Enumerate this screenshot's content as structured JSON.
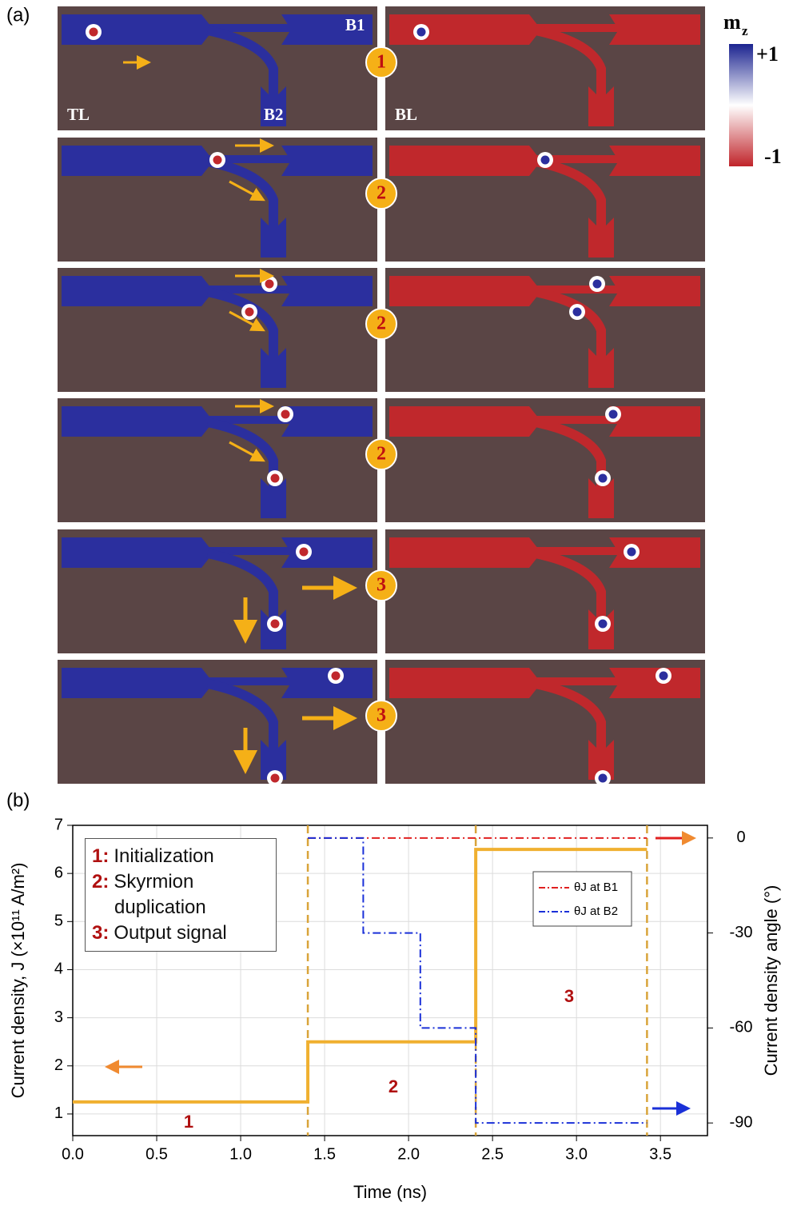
{
  "panel_a": {
    "label": "(a)",
    "terminals": {
      "tl": "TL",
      "b1": "B1",
      "b2": "B2",
      "bl": "BL"
    },
    "steps": [
      "1",
      "2",
      "2",
      "2",
      "3",
      "3"
    ],
    "colorbar": {
      "symbol": "m",
      "subscript": "z",
      "max": "+1",
      "min": "-1"
    }
  },
  "panel_b_label": "(b)",
  "chart_data": {
    "type": "line",
    "x_label": "Time (ns)",
    "y_label": "Current density, J (×10¹¹ A/m²)",
    "y2_label": "Current density angle (°)",
    "xlim": [
      0,
      3.78
    ],
    "xticks": [
      {
        "value": 0,
        "label": "0.0"
      },
      0.5,
      {
        "value": 1,
        "label": "1.0"
      },
      1.5,
      {
        "value": 2,
        "label": "2.0"
      },
      2.5,
      {
        "value": 3,
        "label": "3.0"
      },
      3.5
    ],
    "ylim": [
      0.55,
      7
    ],
    "yticks": [
      1,
      2,
      3,
      4,
      5,
      6,
      7
    ],
    "y2lim": [
      -94,
      4
    ],
    "y2ticks": [
      0,
      -30,
      -60,
      -90
    ],
    "grid": true,
    "legend": "upper right",
    "vlines": {
      "values": [
        1.4,
        2.4,
        3.42
      ],
      "color": "#d9a43a"
    },
    "series": [
      {
        "color": "#f0b030",
        "x": [
          0,
          1.4,
          1.4,
          2.4,
          2.4,
          3.42
        ],
        "values": [
          1.25,
          1.25,
          2.5,
          2.5,
          6.5,
          6.5
        ]
      },
      {
        "name": "θJ at B1",
        "color": "#e02020",
        "axis": "y2",
        "x": [
          1.4,
          3.42
        ],
        "values": [
          0,
          0
        ]
      },
      {
        "name": "θJ at B2",
        "color": "#1a30d8",
        "axis": "y2",
        "x": [
          1.4,
          1.73,
          1.73,
          2.07,
          2.07,
          2.4,
          2.4,
          3.42
        ],
        "values": [
          0,
          0,
          -30,
          -30,
          -60,
          -60,
          -90,
          -90
        ]
      }
    ],
    "phase_labels": [
      "1",
      "2",
      "3"
    ],
    "phase_legend": [
      {
        "key": "1:",
        "text": "Initialization"
      },
      {
        "key": "2:",
        "text": "Skyrmion duplication"
      },
      {
        "key": "3:",
        "text": "Output signal"
      }
    ]
  }
}
